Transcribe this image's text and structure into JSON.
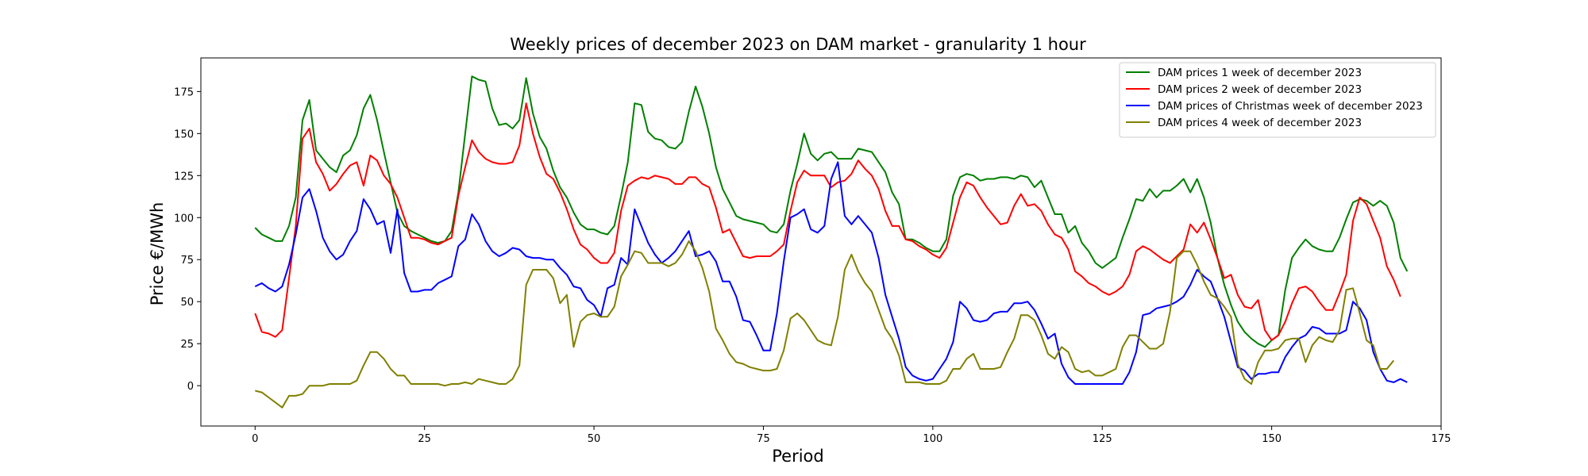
{
  "chart_data": {
    "type": "line",
    "title": "Weekly prices of december 2023 on DAM market - granularity 1 hour",
    "xlabel": "Period",
    "ylabel": "Price €/MWh",
    "xlim": [
      -8,
      175
    ],
    "ylim": [
      -24,
      195
    ],
    "xticks": [
      0,
      25,
      50,
      75,
      100,
      125,
      150,
      175
    ],
    "yticks": [
      0,
      25,
      50,
      75,
      100,
      125,
      150,
      175
    ],
    "grid": false,
    "legend_position": "top-right",
    "series": [
      {
        "name": "DAM prices 1 week of december 2023",
        "color": "#008000",
        "values": [
          94,
          90,
          88,
          86,
          86,
          95,
          112,
          158,
          170,
          140,
          135,
          130,
          127,
          137,
          140,
          149,
          165,
          173,
          158,
          139,
          121,
          103,
          95,
          92,
          90,
          88,
          86,
          85,
          86,
          92,
          115,
          150,
          184,
          182,
          181,
          165,
          155,
          156,
          153,
          158,
          183,
          162,
          148,
          141,
          128,
          118,
          112,
          103,
          96,
          93,
          93,
          91,
          90,
          95,
          113,
          133,
          168,
          167,
          151,
          147,
          146,
          142,
          141,
          145,
          163,
          178,
          166,
          150,
          130,
          117,
          109,
          101,
          99,
          98,
          97,
          96,
          92,
          91,
          96,
          116,
          132,
          150,
          138,
          134,
          138,
          139,
          135,
          135,
          135,
          141,
          140,
          139,
          133,
          127,
          115,
          108,
          87,
          87,
          85,
          82,
          80,
          80,
          87,
          113,
          124,
          126,
          125,
          122,
          123,
          123,
          124,
          124,
          123,
          125,
          124,
          118,
          122,
          112,
          102,
          102,
          91,
          95,
          85,
          80,
          73,
          70,
          73,
          76,
          88,
          99,
          111,
          110,
          117,
          112,
          116,
          116,
          119,
          123,
          115,
          123,
          112,
          97,
          76,
          60,
          48,
          38,
          32,
          28,
          25,
          23,
          27,
          30,
          57,
          76,
          82,
          87,
          83,
          81,
          80,
          80,
          88,
          99,
          109,
          111,
          110,
          107,
          110,
          107,
          97,
          76,
          68
        ]
      },
      {
        "name": "DAM prices 2 week of december 2023",
        "color": "#ff0000",
        "values": [
          43,
          32,
          31,
          29,
          33,
          64,
          95,
          147,
          153,
          133,
          126,
          116,
          120,
          126,
          131,
          133,
          119,
          137,
          134,
          125,
          120,
          112,
          100,
          88,
          88,
          87,
          85,
          84,
          86,
          88,
          113,
          130,
          146,
          139,
          135,
          133,
          132,
          132,
          133,
          143,
          168,
          150,
          136,
          126,
          123,
          115,
          105,
          93,
          84,
          81,
          76,
          73,
          73,
          79,
          104,
          119,
          122,
          124,
          123,
          125,
          124,
          123,
          120,
          120,
          124,
          124,
          120,
          118,
          106,
          91,
          93,
          85,
          77,
          76,
          77,
          77,
          77,
          80,
          84,
          104,
          121,
          128,
          125,
          125,
          125,
          118,
          121,
          122,
          126,
          134,
          129,
          125,
          117,
          104,
          95,
          95,
          87,
          86,
          83,
          81,
          78,
          76,
          82,
          97,
          112,
          121,
          119,
          112,
          106,
          101,
          96,
          97,
          107,
          114,
          107,
          108,
          104,
          96,
          90,
          88,
          81,
          68,
          65,
          61,
          59,
          56,
          54,
          56,
          59,
          66,
          80,
          83,
          81,
          78,
          75,
          73,
          77,
          81,
          96,
          91,
          97,
          87,
          76,
          64,
          66,
          54,
          47,
          46,
          51,
          33,
          27,
          30,
          38,
          49,
          58,
          59,
          56,
          50,
          45,
          45,
          55,
          66,
          98,
          112,
          108,
          98,
          88,
          71,
          63,
          53
        ]
      },
      {
        "name": "DAM prices of Christmas week of december 2023",
        "color": "#0000ff",
        "values": [
          59,
          61,
          58,
          56,
          59,
          72,
          90,
          112,
          117,
          104,
          88,
          80,
          75,
          78,
          86,
          92,
          111,
          105,
          96,
          98,
          79,
          105,
          67,
          56,
          56,
          57,
          57,
          61,
          63,
          65,
          83,
          87,
          102,
          96,
          86,
          80,
          77,
          79,
          82,
          81,
          77,
          76,
          76,
          75,
          75,
          70,
          66,
          59,
          58,
          51,
          48,
          41,
          58,
          60,
          76,
          72,
          105,
          95,
          85,
          78,
          73,
          76,
          80,
          86,
          92,
          77,
          78,
          80,
          74,
          62,
          62,
          53,
          39,
          38,
          30,
          21,
          21,
          43,
          74,
          100,
          102,
          105,
          93,
          91,
          95,
          123,
          133,
          101,
          96,
          101,
          96,
          91,
          76,
          54,
          41,
          28,
          11,
          6,
          4,
          3,
          4,
          10,
          16,
          26,
          50,
          46,
          39,
          38,
          39,
          43,
          44,
          44,
          49,
          49,
          50,
          45,
          37,
          28,
          31,
          13,
          5,
          1,
          1,
          1,
          1,
          1,
          1,
          1,
          1,
          8,
          20,
          42,
          43,
          46,
          47,
          48,
          50,
          53,
          60,
          69,
          65,
          62,
          52,
          41,
          26,
          11,
          9,
          4,
          7,
          7,
          8,
          8,
          17,
          23,
          28,
          30,
          35,
          34,
          31,
          31,
          31,
          33,
          50,
          46,
          39,
          20,
          10,
          3,
          2,
          4,
          2
        ]
      },
      {
        "name": "DAM prices 4 week of december 2023",
        "color": "#808000",
        "values": [
          -3,
          -4,
          -7,
          -10,
          -13,
          -6,
          -6,
          -5,
          0,
          0,
          0,
          1,
          1,
          1,
          1,
          3,
          12,
          20,
          20,
          16,
          10,
          6,
          6,
          1,
          1,
          1,
          1,
          1,
          0,
          1,
          1,
          2,
          1,
          4,
          3,
          2,
          1,
          1,
          4,
          12,
          60,
          69,
          69,
          69,
          64,
          49,
          54,
          23,
          38,
          42,
          43,
          41,
          41,
          47,
          65,
          72,
          80,
          79,
          73,
          73,
          73,
          71,
          73,
          78,
          86,
          80,
          70,
          56,
          34,
          27,
          19,
          14,
          13,
          11,
          10,
          9,
          9,
          10,
          21,
          40,
          43,
          39,
          33,
          27,
          25,
          24,
          41,
          69,
          78,
          68,
          61,
          56,
          45,
          34,
          28,
          18,
          2,
          2,
          2,
          1,
          1,
          1,
          3,
          10,
          10,
          16,
          19,
          10,
          10,
          10,
          11,
          20,
          28,
          42,
          42,
          39,
          30,
          19,
          16,
          23,
          20,
          10,
          8,
          9,
          6,
          6,
          8,
          10,
          23,
          30,
          30,
          26,
          22,
          22,
          25,
          44,
          76,
          80,
          80,
          72,
          62,
          54,
          52,
          47,
          41,
          13,
          4,
          1,
          14,
          21,
          21,
          22,
          27,
          28,
          28,
          14,
          24,
          29,
          27,
          26,
          33,
          57,
          58,
          43,
          27,
          24,
          10,
          10,
          15
        ]
      }
    ]
  }
}
